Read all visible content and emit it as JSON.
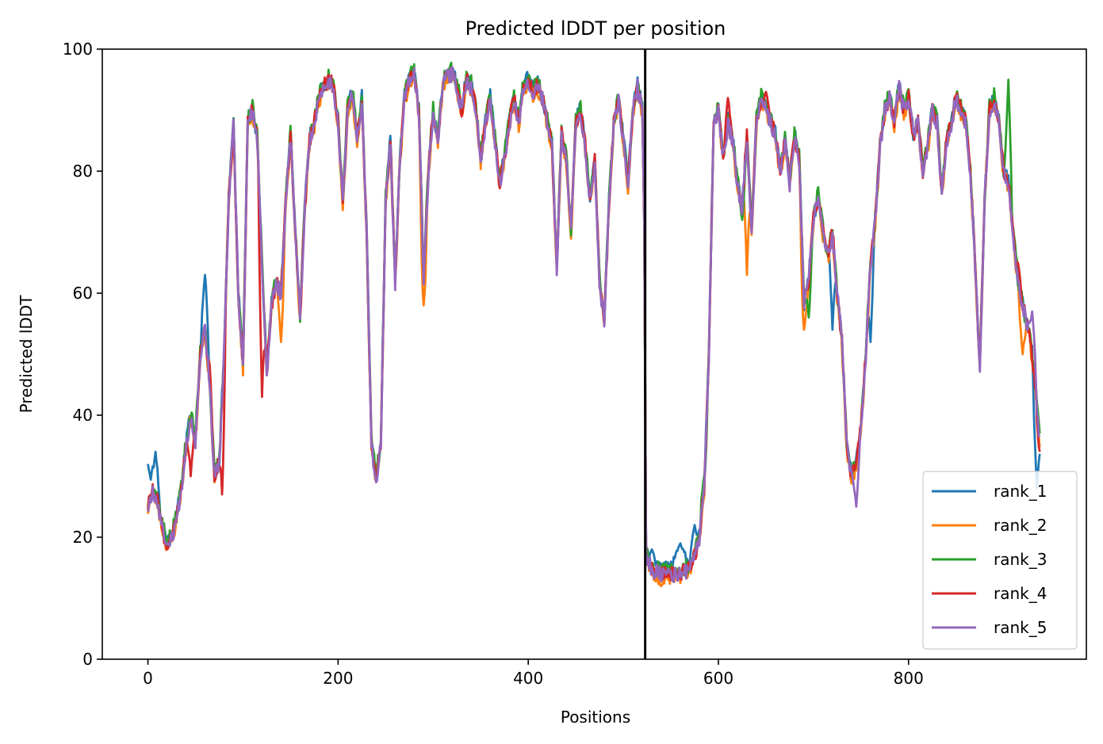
{
  "chart_data": {
    "type": "line",
    "title": "Predicted lDDT per position",
    "xlabel": "Positions",
    "ylabel": "Predicted lDDT",
    "xlim": [
      -48,
      987
    ],
    "ylim": [
      0,
      100
    ],
    "xticks": [
      0,
      200,
      400,
      600,
      800
    ],
    "yticks": [
      0,
      20,
      40,
      60,
      80,
      100
    ],
    "xtick_labels": [
      "0",
      "200",
      "400",
      "600",
      "800"
    ],
    "ytick_labels": [
      "0",
      "20",
      "40",
      "60",
      "80",
      "100"
    ],
    "grid": false,
    "legend_position": "lower-right",
    "vertical_line": {
      "x": 523,
      "color": "#000000"
    },
    "x_range": [
      0,
      938
    ],
    "base_profile": [
      [
        0,
        25
      ],
      [
        5,
        28
      ],
      [
        10,
        26
      ],
      [
        15,
        22
      ],
      [
        20,
        19
      ],
      [
        25,
        20
      ],
      [
        30,
        23
      ],
      [
        35,
        28
      ],
      [
        40,
        35
      ],
      [
        45,
        40
      ],
      [
        50,
        36
      ],
      [
        55,
        50
      ],
      [
        60,
        55
      ],
      [
        65,
        45
      ],
      [
        70,
        30
      ],
      [
        75,
        32
      ],
      [
        80,
        50
      ],
      [
        85,
        75
      ],
      [
        90,
        88
      ],
      [
        95,
        60
      ],
      [
        100,
        48
      ],
      [
        105,
        88
      ],
      [
        110,
        90
      ],
      [
        115,
        85
      ],
      [
        120,
        65
      ],
      [
        125,
        47
      ],
      [
        130,
        58
      ],
      [
        135,
        62
      ],
      [
        140,
        60
      ],
      [
        145,
        75
      ],
      [
        150,
        86
      ],
      [
        155,
        70
      ],
      [
        160,
        56
      ],
      [
        165,
        74
      ],
      [
        170,
        85
      ],
      [
        175,
        88
      ],
      [
        180,
        92
      ],
      [
        185,
        94
      ],
      [
        190,
        95
      ],
      [
        195,
        94
      ],
      [
        200,
        88
      ],
      [
        205,
        75
      ],
      [
        210,
        90
      ],
      [
        215,
        93
      ],
      [
        220,
        85
      ],
      [
        225,
        92
      ],
      [
        230,
        70
      ],
      [
        235,
        36
      ],
      [
        240,
        30
      ],
      [
        245,
        35
      ],
      [
        250,
        75
      ],
      [
        255,
        85
      ],
      [
        260,
        62
      ],
      [
        265,
        82
      ],
      [
        270,
        92
      ],
      [
        275,
        95
      ],
      [
        280,
        96
      ],
      [
        285,
        90
      ],
      [
        290,
        62
      ],
      [
        295,
        80
      ],
      [
        300,
        90
      ],
      [
        305,
        85
      ],
      [
        310,
        94
      ],
      [
        315,
        96
      ],
      [
        320,
        96
      ],
      [
        325,
        94
      ],
      [
        330,
        90
      ],
      [
        335,
        95
      ],
      [
        340,
        94
      ],
      [
        345,
        90
      ],
      [
        350,
        82
      ],
      [
        355,
        88
      ],
      [
        360,
        92
      ],
      [
        365,
        85
      ],
      [
        370,
        78
      ],
      [
        375,
        82
      ],
      [
        380,
        88
      ],
      [
        385,
        92
      ],
      [
        390,
        88
      ],
      [
        395,
        94
      ],
      [
        400,
        95
      ],
      [
        405,
        93
      ],
      [
        410,
        94
      ],
      [
        415,
        92
      ],
      [
        420,
        88
      ],
      [
        425,
        84
      ],
      [
        430,
        64
      ],
      [
        435,
        86
      ],
      [
        440,
        82
      ],
      [
        445,
        70
      ],
      [
        450,
        88
      ],
      [
        455,
        90
      ],
      [
        460,
        84
      ],
      [
        465,
        75
      ],
      [
        470,
        82
      ],
      [
        475,
        62
      ],
      [
        480,
        55
      ],
      [
        485,
        75
      ],
      [
        490,
        88
      ],
      [
        495,
        92
      ],
      [
        500,
        85
      ],
      [
        505,
        78
      ],
      [
        510,
        90
      ],
      [
        515,
        94
      ],
      [
        520,
        90
      ],
      [
        522,
        72
      ],
      [
        524,
        17
      ],
      [
        530,
        15
      ],
      [
        540,
        14
      ],
      [
        550,
        14
      ],
      [
        560,
        14
      ],
      [
        570,
        15
      ],
      [
        575,
        17
      ],
      [
        580,
        20
      ],
      [
        585,
        28
      ],
      [
        590,
        50
      ],
      [
        595,
        88
      ],
      [
        600,
        90
      ],
      [
        605,
        82
      ],
      [
        610,
        88
      ],
      [
        615,
        85
      ],
      [
        620,
        78
      ],
      [
        625,
        74
      ],
      [
        630,
        86
      ],
      [
        635,
        70
      ],
      [
        640,
        88
      ],
      [
        645,
        92
      ],
      [
        650,
        90
      ],
      [
        655,
        88
      ],
      [
        660,
        86
      ],
      [
        665,
        80
      ],
      [
        670,
        85
      ],
      [
        675,
        78
      ],
      [
        680,
        86
      ],
      [
        685,
        82
      ],
      [
        690,
        58
      ],
      [
        695,
        62
      ],
      [
        700,
        72
      ],
      [
        705,
        76
      ],
      [
        710,
        70
      ],
      [
        715,
        66
      ],
      [
        720,
        70
      ],
      [
        725,
        60
      ],
      [
        730,
        52
      ],
      [
        735,
        35
      ],
      [
        740,
        30
      ],
      [
        745,
        32
      ],
      [
        750,
        38
      ],
      [
        755,
        50
      ],
      [
        760,
        65
      ],
      [
        765,
        72
      ],
      [
        770,
        84
      ],
      [
        775,
        90
      ],
      [
        780,
        92
      ],
      [
        785,
        88
      ],
      [
        790,
        94
      ],
      [
        795,
        90
      ],
      [
        800,
        92
      ],
      [
        805,
        86
      ],
      [
        810,
        88
      ],
      [
        815,
        80
      ],
      [
        820,
        84
      ],
      [
        825,
        90
      ],
      [
        830,
        88
      ],
      [
        835,
        76
      ],
      [
        840,
        85
      ],
      [
        845,
        88
      ],
      [
        850,
        92
      ],
      [
        855,
        90
      ],
      [
        860,
        88
      ],
      [
        865,
        80
      ],
      [
        870,
        65
      ],
      [
        875,
        48
      ],
      [
        880,
        75
      ],
      [
        885,
        90
      ],
      [
        890,
        92
      ],
      [
        895,
        88
      ],
      [
        900,
        80
      ],
      [
        905,
        78
      ],
      [
        910,
        70
      ],
      [
        915,
        62
      ],
      [
        920,
        58
      ],
      [
        925,
        55
      ],
      [
        930,
        50
      ],
      [
        935,
        42
      ],
      [
        938,
        36
      ]
    ],
    "series": [
      {
        "name": "rank_1",
        "color": "#1f77b4",
        "offset": 0.3,
        "noise_seed": 11,
        "pert": [
          [
            0,
            32,
            6
          ],
          [
            8,
            34,
            4
          ],
          [
            60,
            63,
            4
          ],
          [
            530,
            18,
            4
          ],
          [
            545,
            16,
            8
          ],
          [
            560,
            19,
            10
          ],
          [
            575,
            22,
            4
          ],
          [
            720,
            54,
            3
          ],
          [
            760,
            52,
            3
          ],
          [
            935,
            28,
            4
          ]
        ]
      },
      {
        "name": "rank_2",
        "color": "#ff7f0e",
        "offset": -0.5,
        "noise_seed": 23,
        "pert": [
          [
            140,
            52,
            3
          ],
          [
            290,
            58,
            3
          ],
          [
            540,
            12,
            6
          ],
          [
            630,
            63,
            3
          ],
          [
            690,
            54,
            3
          ],
          [
            920,
            50,
            4
          ]
        ]
      },
      {
        "name": "rank_3",
        "color": "#2ca02c",
        "offset": 0.5,
        "noise_seed": 37,
        "pert": [
          [
            585,
            30,
            3
          ],
          [
            625,
            72,
            3
          ],
          [
            695,
            56,
            3
          ],
          [
            905,
            95,
            3
          ],
          [
            925,
            54,
            4
          ]
        ]
      },
      {
        "name": "rank_4",
        "color": "#d62728",
        "offset": 0.0,
        "noise_seed": 51,
        "pert": [
          [
            20,
            18,
            4
          ],
          [
            45,
            30,
            3
          ],
          [
            64,
            49,
            3
          ],
          [
            78,
            27,
            3
          ],
          [
            120,
            43,
            3
          ],
          [
            610,
            92,
            3
          ],
          [
            650,
            93,
            3
          ],
          [
            915,
            65,
            4
          ],
          [
            938,
            34,
            3
          ]
        ]
      },
      {
        "name": "rank_5",
        "color": "#9467bd",
        "offset": -0.2,
        "noise_seed": 67,
        "pert": [
          [
            20,
            19,
            4
          ],
          [
            240,
            29,
            3
          ],
          [
            745,
            25,
            3
          ],
          [
            930,
            57,
            4
          ]
        ]
      }
    ]
  }
}
